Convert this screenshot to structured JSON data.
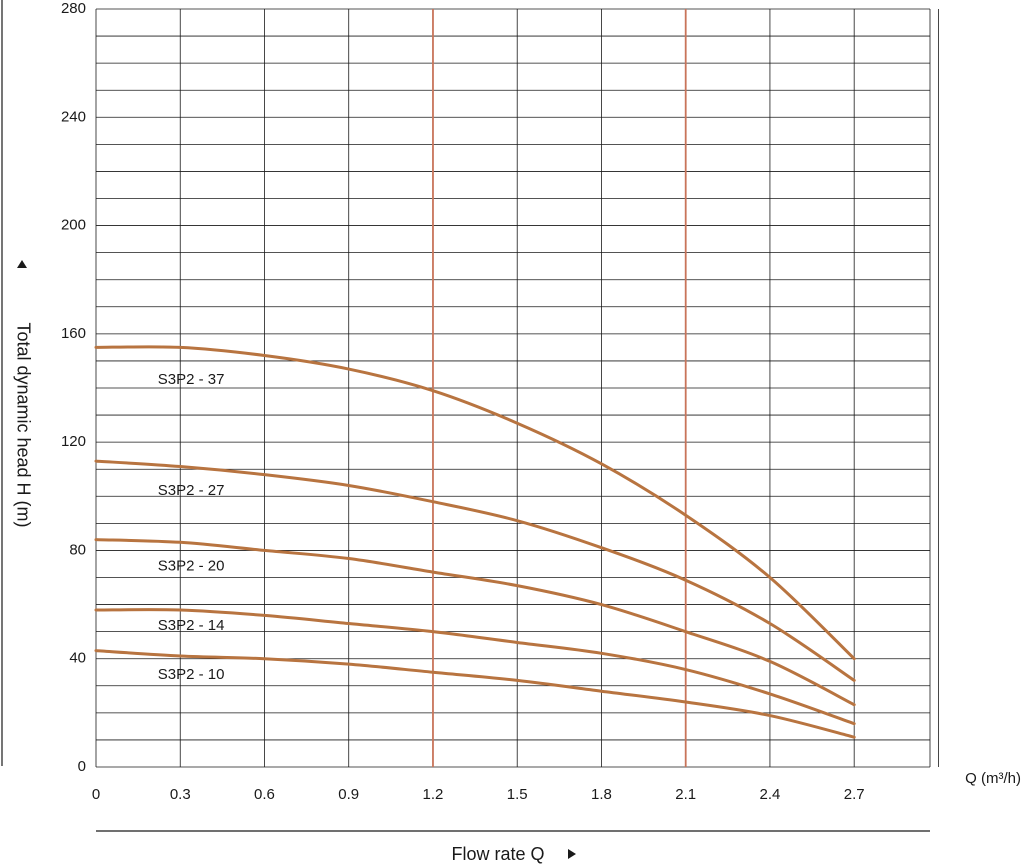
{
  "chart_data": {
    "type": "line",
    "xlabel": "Flow rate Q",
    "ylabel": "Total dynamic head H (m)",
    "x_unit_label": "Q (m³/h)",
    "xlim": [
      0,
      2.97
    ],
    "ylim": [
      0,
      280
    ],
    "x_ticks": [
      0,
      0.3,
      0.6,
      0.9,
      1.2,
      1.5,
      1.8,
      2.1,
      2.4,
      2.7
    ],
    "x_tick_labels": [
      "0",
      "0.3",
      "0.6",
      "0.9",
      "1.2",
      "1.5",
      "1.8",
      "2.1",
      "2.4",
      "2.7"
    ],
    "y_ticks": [
      0,
      40,
      80,
      120,
      160,
      200,
      240,
      280
    ],
    "y_tick_labels": [
      "0",
      "40",
      "80",
      "120",
      "160",
      "200",
      "240",
      "280"
    ],
    "grid": true,
    "x_grid_step": 0.3,
    "y_grid_step": 10,
    "reference_lines_x": [
      1.2,
      2.1
    ],
    "reference_line_color": "#c8745a",
    "series_color": "#b87440",
    "series": [
      {
        "name": "S3P2 - 37",
        "label_at": [
          0.22,
          143
        ],
        "x": [
          0,
          0.3,
          0.6,
          0.9,
          1.2,
          1.5,
          1.8,
          2.1,
          2.4,
          2.7
        ],
        "y": [
          155,
          155,
          152,
          147,
          139,
          127,
          112,
          93,
          70,
          40
        ]
      },
      {
        "name": "S3P2 - 27",
        "label_at": [
          0.22,
          102
        ],
        "x": [
          0,
          0.3,
          0.6,
          0.9,
          1.2,
          1.5,
          1.8,
          2.1,
          2.4,
          2.7
        ],
        "y": [
          113,
          111,
          108,
          104,
          98,
          91,
          81,
          69,
          53,
          32
        ]
      },
      {
        "name": "S3P2 - 20",
        "label_at": [
          0.22,
          74
        ],
        "x": [
          0,
          0.3,
          0.6,
          0.9,
          1.2,
          1.5,
          1.8,
          2.1,
          2.4,
          2.7
        ],
        "y": [
          84,
          83,
          80,
          77,
          72,
          67,
          60,
          50,
          39,
          23
        ]
      },
      {
        "name": "S3P2 - 14",
        "label_at": [
          0.22,
          52
        ],
        "x": [
          0,
          0.3,
          0.6,
          0.9,
          1.2,
          1.5,
          1.8,
          2.1,
          2.4,
          2.7
        ],
        "y": [
          58,
          58,
          56,
          53,
          50,
          46,
          42,
          36,
          27,
          16
        ]
      },
      {
        "name": "S3P2 - 10",
        "label_at": [
          0.22,
          34
        ],
        "x": [
          0,
          0.3,
          0.6,
          0.9,
          1.2,
          1.5,
          1.8,
          2.1,
          2.4,
          2.7
        ],
        "y": [
          43,
          41,
          40,
          38,
          35,
          32,
          28,
          24,
          19,
          11
        ]
      }
    ]
  }
}
